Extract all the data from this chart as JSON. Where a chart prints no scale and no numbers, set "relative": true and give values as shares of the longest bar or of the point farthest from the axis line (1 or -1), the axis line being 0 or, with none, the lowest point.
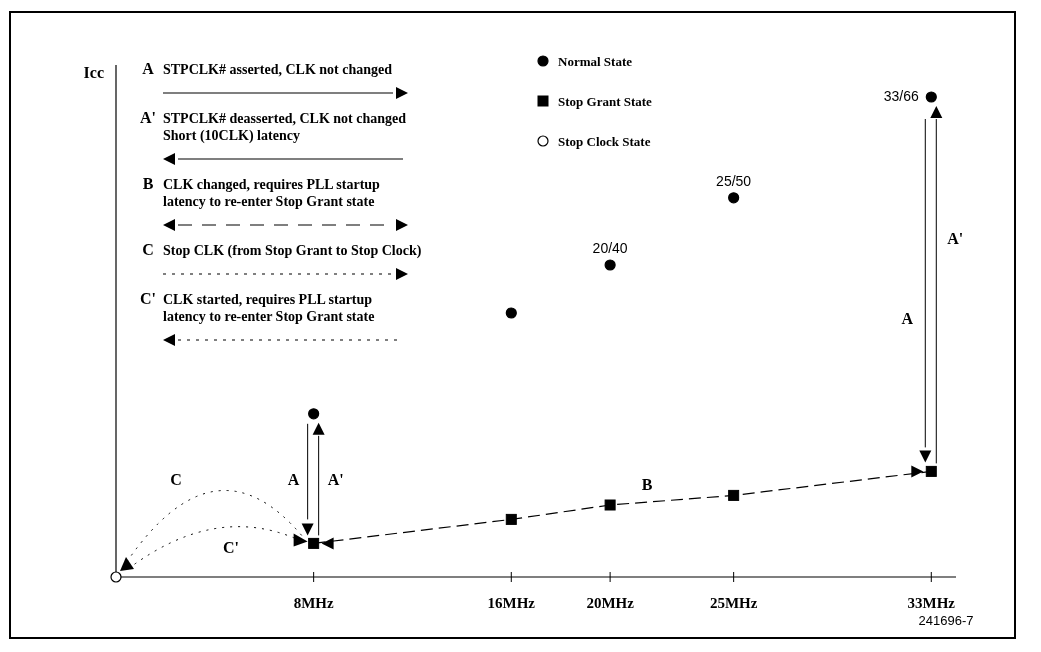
{
  "chart_data": {
    "type": "scatter",
    "relative": true,
    "ylabel": "Icc",
    "xlim": [
      0,
      34
    ],
    "xticks": [
      {
        "value": 8,
        "label": "8MHz"
      },
      {
        "value": 16,
        "label": "16MHz"
      },
      {
        "value": 20,
        "label": "20MHz"
      },
      {
        "value": 25,
        "label": "25MHz"
      },
      {
        "value": 33,
        "label": "33MHz"
      }
    ],
    "tick_labels": "x",
    "legend": "top",
    "series": [
      {
        "name": "Normal State",
        "marker": "circle",
        "color": "#000000",
        "x": [
          8,
          16,
          20,
          25,
          33
        ],
        "values": [
          0.34,
          0.55,
          0.65,
          0.79,
          1
        ]
      },
      {
        "name": "Stop Grant State",
        "type": "line",
        "line_style": "dashed",
        "marker": "square",
        "color": "#000000",
        "x": [
          8,
          16,
          20,
          25,
          33
        ],
        "values": [
          0.07,
          0.12,
          0.15,
          0.17,
          0.22
        ]
      },
      {
        "name": "Stop Clock State",
        "marker": "circle",
        "color": "#ffffff",
        "x": [
          0
        ],
        "values": [
          0
        ]
      }
    ],
    "annotations": [
      "A",
      "STPCLK# asserted, CLK not changed",
      "A'",
      "STPCLK# deasserted, CLK not changed\nShort (10CLK) latency",
      "B",
      "CLK changed, requires PLL startup\nlatency to re-enter Stop Grant state",
      "C",
      "Stop CLK (from Stop Grant to Stop Clock)",
      "C'",
      "CLK started, requires PLL startup\nlatency to re-enter Stop Grant state",
      "A",
      "A'",
      "A",
      "A'",
      "B",
      "C",
      "C'",
      "241696-7",
      {
        "text": "20/40",
        "x": 20,
        "y": 0.65
      },
      {
        "text": "25/50",
        "x": 25,
        "y": 0.79
      },
      {
        "text": "33/66",
        "x": 33,
        "y": 1
      }
    ]
  }
}
